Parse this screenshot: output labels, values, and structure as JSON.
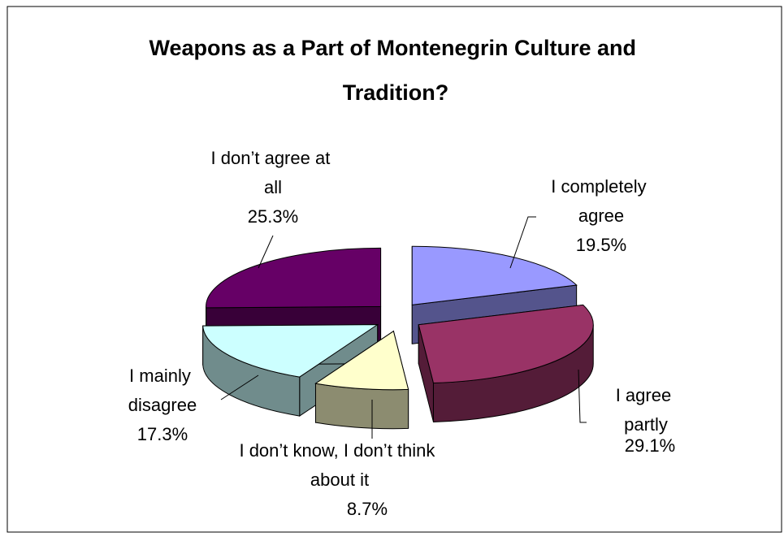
{
  "chart_data": {
    "type": "pie3d",
    "title": "Weapons as a Part of Montenegrin Culture and Tradition?",
    "categories": [
      "I completely agree",
      "I agree partly",
      "I don’t know, I don’t think about it",
      "I mainly disagree",
      "I don’t agree at all"
    ],
    "values": [
      19.5,
      29.1,
      8.7,
      17.3,
      25.3
    ],
    "value_labels": [
      "19.5%",
      "29.1%",
      "8.7%",
      "17.3%",
      "25.3%"
    ],
    "colors": [
      "#9999ff",
      "#993366",
      "#ffffcc",
      "#ccffff",
      "#660066"
    ]
  }
}
